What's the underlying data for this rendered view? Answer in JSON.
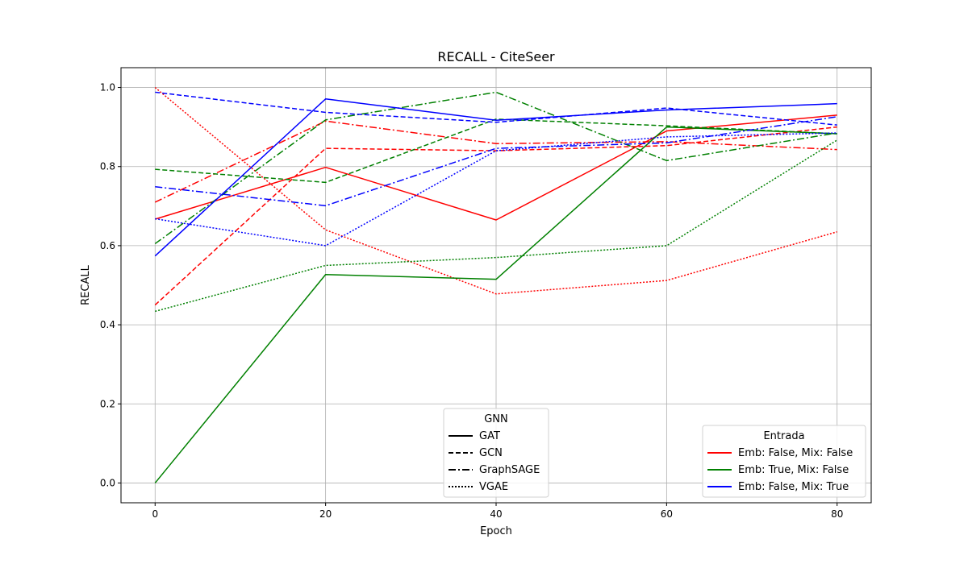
{
  "chart_data": {
    "type": "line",
    "title": "RECALL - CiteSeer",
    "xlabel": "Epoch",
    "ylabel": "RECALL",
    "xlim": [
      -4,
      84
    ],
    "ylim": [
      -0.05,
      1.05
    ],
    "xticks": [
      0,
      20,
      40,
      60,
      80
    ],
    "yticks": [
      0.0,
      0.2,
      0.4,
      0.6,
      0.8,
      1.0
    ],
    "xtick_labels": [
      "0",
      "20",
      "40",
      "60",
      "80"
    ],
    "ytick_labels": [
      "0.0",
      "0.2",
      "0.4",
      "0.6",
      "0.8",
      "1.0"
    ],
    "grid": true,
    "x": [
      0,
      20,
      40,
      60,
      80
    ],
    "colors": {
      "Emb: False, Mix: False": "#ff0000",
      "Emb: True, Mix: False": "#008000",
      "Emb: False, Mix: True": "#0000ff"
    },
    "linestyles": {
      "GAT": "solid",
      "GCN": "dashed",
      "GraphSAGE": "dashdot",
      "VGAE": "dotted"
    },
    "series": [
      {
        "gnn": "GAT",
        "entrada": "Emb: False, Mix: False",
        "values": [
          0.667,
          0.798,
          0.665,
          0.89,
          0.93
        ]
      },
      {
        "gnn": "GCN",
        "entrada": "Emb: False, Mix: False",
        "values": [
          0.45,
          0.846,
          0.84,
          0.853,
          0.9
        ]
      },
      {
        "gnn": "GraphSAGE",
        "entrada": "Emb: False, Mix: False",
        "values": [
          0.71,
          0.915,
          0.858,
          0.863,
          0.843
        ]
      },
      {
        "gnn": "VGAE",
        "entrada": "Emb: False, Mix: False",
        "values": [
          1.0,
          0.64,
          0.478,
          0.512,
          0.635
        ]
      },
      {
        "gnn": "GAT",
        "entrada": "Emb: True, Mix: False",
        "values": [
          0.0,
          0.527,
          0.515,
          0.9,
          0.883
        ]
      },
      {
        "gnn": "GCN",
        "entrada": "Emb: True, Mix: False",
        "values": [
          0.793,
          0.76,
          0.92,
          0.903,
          0.883
        ]
      },
      {
        "gnn": "GraphSAGE",
        "entrada": "Emb: True, Mix: False",
        "values": [
          0.605,
          0.918,
          0.988,
          0.815,
          0.885
        ]
      },
      {
        "gnn": "VGAE",
        "entrada": "Emb: True, Mix: False",
        "values": [
          0.434,
          0.55,
          0.57,
          0.6,
          0.867
        ]
      },
      {
        "gnn": "GAT",
        "entrada": "Emb: False, Mix: True",
        "values": [
          0.574,
          0.971,
          0.917,
          0.943,
          0.959
        ]
      },
      {
        "gnn": "GCN",
        "entrada": "Emb: False, Mix: True",
        "values": [
          0.988,
          0.937,
          0.912,
          0.948,
          0.905
        ]
      },
      {
        "gnn": "GraphSAGE",
        "entrada": "Emb: False, Mix: True",
        "values": [
          0.749,
          0.701,
          0.846,
          0.86,
          0.926
        ]
      },
      {
        "gnn": "VGAE",
        "entrada": "Emb: False, Mix: True",
        "values": [
          0.668,
          0.6,
          0.84,
          0.875,
          0.885
        ]
      }
    ],
    "legends": [
      {
        "title": "GNN",
        "placement": "lower center",
        "entries": [
          {
            "label": "GAT",
            "style": "solid",
            "color": "#000000"
          },
          {
            "label": "GCN",
            "style": "dashed",
            "color": "#000000"
          },
          {
            "label": "GraphSAGE",
            "style": "dashdot",
            "color": "#000000"
          },
          {
            "label": "VGAE",
            "style": "dotted",
            "color": "#000000"
          }
        ]
      },
      {
        "title": "Entrada",
        "placement": "lower right",
        "entries": [
          {
            "label": "Emb: False, Mix: False",
            "style": "solid",
            "color": "#ff0000"
          },
          {
            "label": "Emb: True, Mix: False",
            "style": "solid",
            "color": "#008000"
          },
          {
            "label": "Emb: False, Mix: True",
            "style": "solid",
            "color": "#0000ff"
          }
        ]
      }
    ]
  }
}
